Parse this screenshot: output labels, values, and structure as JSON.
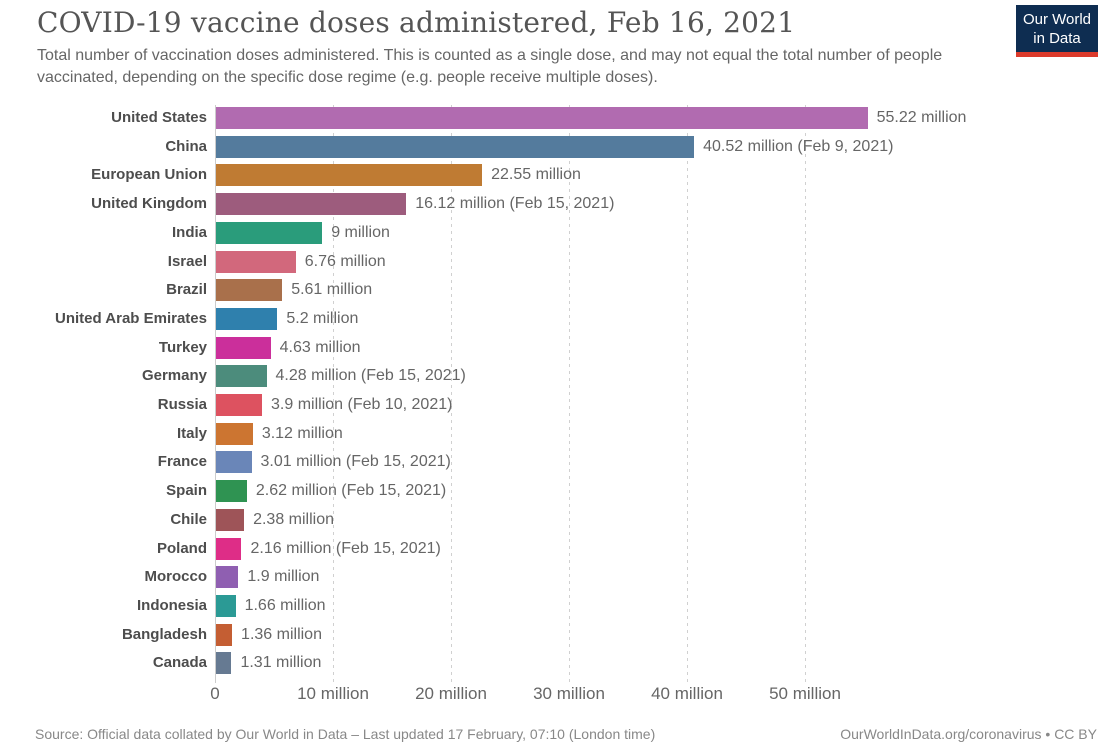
{
  "header": {
    "title": "COVID-19 vaccine doses administered, Feb 16, 2021",
    "subtitle": "Total number of vaccination doses administered. This is counted as a single dose, and may not equal the total number of people vaccinated, depending on the specific dose regime (e.g. people receive multiple doses).",
    "logo": {
      "line1": "Our World",
      "line2": "in Data",
      "bg_color": "#0e2d51",
      "accent_color": "#dc3a2b"
    }
  },
  "chart_data": {
    "type": "bar",
    "orientation": "horizontal",
    "title": "COVID-19 vaccine doses administered, Feb 16, 2021",
    "xlabel": "",
    "ylabel": "",
    "unit": "million doses",
    "xlim": [
      0,
      57
    ],
    "grid": "vertical-dashed",
    "legend": "none",
    "x_ticks": [
      {
        "value": 0,
        "label": "0"
      },
      {
        "value": 10,
        "label": "10 million"
      },
      {
        "value": 20,
        "label": "20 million"
      },
      {
        "value": 30,
        "label": "30 million"
      },
      {
        "value": 40,
        "label": "40 million"
      },
      {
        "value": 50,
        "label": "50 million"
      }
    ],
    "bars": [
      {
        "label": "United States",
        "value": 55.22,
        "value_label": "55.22 million",
        "color": "#b16bb0"
      },
      {
        "label": "China",
        "value": 40.52,
        "value_label": "40.52 million (Feb 9, 2021)",
        "color": "#547b9d"
      },
      {
        "label": "European Union",
        "value": 22.55,
        "value_label": "22.55 million",
        "color": "#bf7b33"
      },
      {
        "label": "United Kingdom",
        "value": 16.12,
        "value_label": "16.12 million (Feb 15, 2021)",
        "color": "#9d5c7d"
      },
      {
        "label": "India",
        "value": 9,
        "value_label": "9 million",
        "color": "#2a9c7b"
      },
      {
        "label": "Israel",
        "value": 6.76,
        "value_label": "6.76 million",
        "color": "#d2687c"
      },
      {
        "label": "Brazil",
        "value": 5.61,
        "value_label": "5.61 million",
        "color": "#a9704b"
      },
      {
        "label": "United Arab Emirates",
        "value": 5.2,
        "value_label": "5.2 million",
        "color": "#2f80ad"
      },
      {
        "label": "Turkey",
        "value": 4.63,
        "value_label": "4.63 million",
        "color": "#cb2f9b"
      },
      {
        "label": "Germany",
        "value": 4.28,
        "value_label": "4.28 million (Feb 15, 2021)",
        "color": "#4c8c7c"
      },
      {
        "label": "Russia",
        "value": 3.9,
        "value_label": "3.9 million (Feb 10, 2021)",
        "color": "#dd5260"
      },
      {
        "label": "Italy",
        "value": 3.12,
        "value_label": "3.12 million",
        "color": "#cc7531"
      },
      {
        "label": "France",
        "value": 3.01,
        "value_label": "3.01 million (Feb 15, 2021)",
        "color": "#6a86b8"
      },
      {
        "label": "Spain",
        "value": 2.62,
        "value_label": "2.62 million (Feb 15, 2021)",
        "color": "#2f9352"
      },
      {
        "label": "Chile",
        "value": 2.38,
        "value_label": "2.38 million",
        "color": "#9e5458"
      },
      {
        "label": "Poland",
        "value": 2.16,
        "value_label": "2.16 million (Feb 15, 2021)",
        "color": "#de2d87"
      },
      {
        "label": "Morocco",
        "value": 1.9,
        "value_label": "1.9 million",
        "color": "#8f5fb1"
      },
      {
        "label": "Indonesia",
        "value": 1.66,
        "value_label": "1.66 million",
        "color": "#2b9a95"
      },
      {
        "label": "Bangladesh",
        "value": 1.36,
        "value_label": "1.36 million",
        "color": "#c45e33"
      },
      {
        "label": "Canada",
        "value": 1.31,
        "value_label": "1.31 million",
        "color": "#667a92"
      }
    ]
  },
  "footer": {
    "source": "Source: Official data collated by Our World in Data – Last updated 17 February, 07:10 (London time)",
    "link": "OurWorldInData.org/coronavirus • CC BY"
  }
}
